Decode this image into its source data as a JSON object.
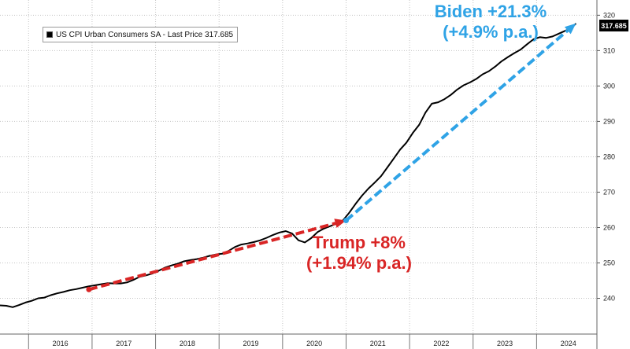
{
  "chart_data": {
    "type": "line",
    "title": "",
    "xlabel": "",
    "ylabel": "",
    "x_tick_labels": [
      "2016",
      "2017",
      "2018",
      "2019",
      "2020",
      "2021",
      "2022",
      "2023",
      "2024"
    ],
    "y_ticks": [
      240,
      250,
      260,
      270,
      280,
      290,
      300,
      310,
      320
    ],
    "y_axis_position": "right",
    "xlim": [
      2015.55,
      2024.95
    ],
    "ylim": [
      229.9,
      324.3
    ],
    "grid": "vertical dotted at year boundaries, horizontal dotted at y ticks",
    "series": [
      {
        "name": "US CPI Urban Consumers SA - Last Price 317.685",
        "color": "#000000",
        "points": [
          [
            2015.55,
            238.0
          ],
          [
            2015.65,
            237.9
          ],
          [
            2015.75,
            237.5
          ],
          [
            2015.85,
            238.1
          ],
          [
            2015.95,
            238.8
          ],
          [
            2016.05,
            239.3
          ],
          [
            2016.15,
            240.0
          ],
          [
            2016.25,
            240.2
          ],
          [
            2016.35,
            240.9
          ],
          [
            2016.45,
            241.4
          ],
          [
            2016.55,
            241.8
          ],
          [
            2016.65,
            242.3
          ],
          [
            2016.75,
            242.6
          ],
          [
            2016.85,
            243.0
          ],
          [
            2016.95,
            243.4
          ],
          [
            2017.05,
            243.7
          ],
          [
            2017.15,
            244.0
          ],
          [
            2017.25,
            244.3
          ],
          [
            2017.35,
            244.2
          ],
          [
            2017.45,
            244.2
          ],
          [
            2017.55,
            244.5
          ],
          [
            2017.65,
            245.2
          ],
          [
            2017.75,
            246.1
          ],
          [
            2017.85,
            246.5
          ],
          [
            2017.95,
            247.0
          ],
          [
            2018.05,
            247.8
          ],
          [
            2018.15,
            248.7
          ],
          [
            2018.25,
            249.3
          ],
          [
            2018.35,
            249.8
          ],
          [
            2018.45,
            250.5
          ],
          [
            2018.55,
            250.8
          ],
          [
            2018.65,
            251.1
          ],
          [
            2018.75,
            251.5
          ],
          [
            2018.85,
            252.0
          ],
          [
            2018.95,
            252.4
          ],
          [
            2019.05,
            252.6
          ],
          [
            2019.15,
            253.4
          ],
          [
            2019.25,
            254.5
          ],
          [
            2019.35,
            255.2
          ],
          [
            2019.45,
            255.5
          ],
          [
            2019.55,
            255.9
          ],
          [
            2019.65,
            256.4
          ],
          [
            2019.75,
            257.1
          ],
          [
            2019.85,
            257.9
          ],
          [
            2019.95,
            258.6
          ],
          [
            2020.05,
            259.0
          ],
          [
            2020.15,
            258.3
          ],
          [
            2020.25,
            256.4
          ],
          [
            2020.35,
            255.8
          ],
          [
            2020.45,
            257.0
          ],
          [
            2020.55,
            258.7
          ],
          [
            2020.65,
            259.7
          ],
          [
            2020.75,
            260.4
          ],
          [
            2020.85,
            261.1
          ],
          [
            2020.95,
            262.0
          ],
          [
            2021.05,
            264.2
          ],
          [
            2021.15,
            266.7
          ],
          [
            2021.25,
            269.0
          ],
          [
            2021.35,
            271.0
          ],
          [
            2021.45,
            272.7
          ],
          [
            2021.55,
            274.5
          ],
          [
            2021.65,
            277.0
          ],
          [
            2021.75,
            279.5
          ],
          [
            2021.85,
            282.0
          ],
          [
            2021.95,
            284.0
          ],
          [
            2022.05,
            286.7
          ],
          [
            2022.15,
            289.0
          ],
          [
            2022.25,
            292.5
          ],
          [
            2022.35,
            295.0
          ],
          [
            2022.45,
            295.4
          ],
          [
            2022.55,
            296.3
          ],
          [
            2022.65,
            297.5
          ],
          [
            2022.75,
            299.0
          ],
          [
            2022.85,
            300.2
          ],
          [
            2022.95,
            301.0
          ],
          [
            2023.05,
            302.0
          ],
          [
            2023.15,
            303.3
          ],
          [
            2023.25,
            304.2
          ],
          [
            2023.35,
            305.5
          ],
          [
            2023.45,
            307.0
          ],
          [
            2023.55,
            308.2
          ],
          [
            2023.65,
            309.3
          ],
          [
            2023.75,
            310.3
          ],
          [
            2023.85,
            311.8
          ],
          [
            2023.95,
            313.2
          ],
          [
            2024.05,
            313.8
          ],
          [
            2024.15,
            313.6
          ],
          [
            2024.25,
            314.0
          ],
          [
            2024.35,
            314.8
          ],
          [
            2024.45,
            315.6
          ],
          [
            2024.55,
            316.4
          ],
          [
            2024.62,
            317.685
          ]
        ]
      }
    ],
    "arrows": [
      {
        "name": "trump",
        "color": "#d92525",
        "from": [
          2016.95,
          242.5
        ],
        "to": [
          2021.0,
          262.0
        ]
      },
      {
        "name": "biden",
        "color": "#2fa3e6",
        "from": [
          2021.0,
          262.0
        ],
        "to": [
          2024.62,
          317.7
        ]
      }
    ],
    "legend": {
      "text": "US CPI Urban Consumers SA - Last Price 317.685",
      "placement": "top-left"
    },
    "last_price_label": "317.685",
    "annotations": {
      "biden": {
        "line1": "Biden +21.3%",
        "line2": "(+4.9% p.a.)",
        "color": "#2fa3e6"
      },
      "trump": {
        "line1": "Trump +8%",
        "line2": "(+1.94% p.a.)",
        "color": "#d92525"
      }
    }
  }
}
